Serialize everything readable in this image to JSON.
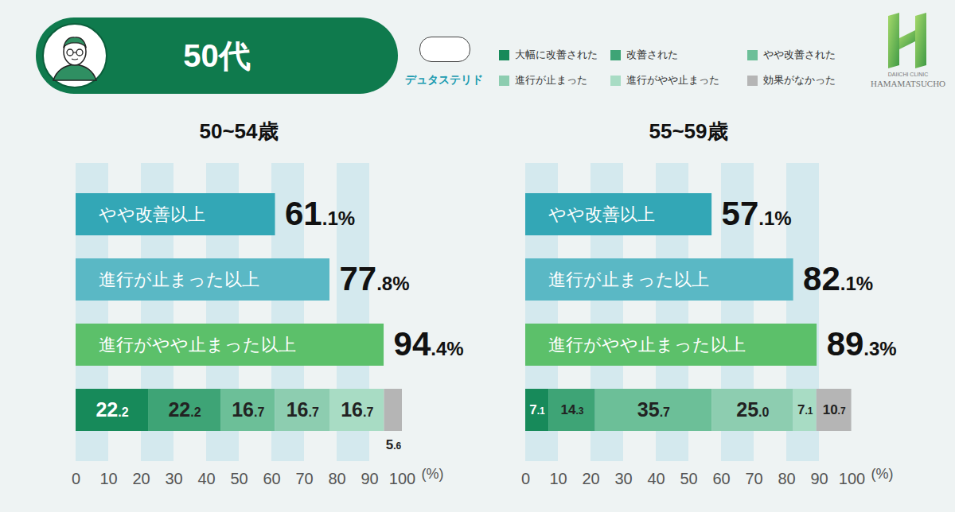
{
  "header": {
    "title": "50代",
    "drug": "デュタステリド",
    "logo": [
      "DAIICHI CLINIC",
      "HAMAMATSUCHO"
    ],
    "legend": "top"
  },
  "chart_data": [
    {
      "type": "bar",
      "title": "50~54歳",
      "orientation": "horizontal",
      "categories": [
        "やや改善以上",
        "進行が止まった以上",
        "進行がやや止まった以上"
      ],
      "values": [
        61.1,
        77.8,
        94.4
      ],
      "value_labels": [
        "61.1%",
        "77.8%",
        "94.4%"
      ],
      "colors": [
        "#33a7b6",
        "#5ab8c5",
        "#5cc06a"
      ],
      "data_labels": true,
      "xlim": [
        0,
        100
      ],
      "xticks": [
        0,
        10,
        20,
        30,
        40,
        50,
        60,
        70,
        80,
        90,
        100
      ],
      "xlabel": "(%)",
      "grid": true,
      "tick_labels": "x",
      "breakdown": {
        "type": "bar",
        "stacked": true,
        "orientation": "horizontal",
        "data_labels": true,
        "series": [
          {
            "name": "大幅に改善された",
            "color": "#178a5a",
            "values": [
              22.2
            ],
            "value_labels": [
              "22.2"
            ]
          },
          {
            "name": "改善された",
            "color": "#3ea476",
            "values": [
              22.2
            ],
            "value_labels": [
              "22.2"
            ]
          },
          {
            "name": "やや改善された",
            "color": "#6cbf98",
            "values": [
              16.7
            ],
            "value_labels": [
              "16.7"
            ]
          },
          {
            "name": "進行が止まった",
            "color": "#8dcdb0",
            "values": [
              16.7
            ],
            "value_labels": [
              "16.7"
            ]
          },
          {
            "name": "進行がやや止まった",
            "color": "#a8dcc4",
            "values": [
              16.7
            ],
            "value_labels": [
              "16.7"
            ]
          },
          {
            "name": "効果がなかった",
            "color": "#b5b5b5",
            "values": [
              5.6
            ],
            "value_labels": [
              "5.6"
            ]
          }
        ]
      }
    },
    {
      "type": "bar",
      "title": "55~59歳",
      "orientation": "horizontal",
      "categories": [
        "やや改善以上",
        "進行が止まった以上",
        "進行がやや止まった以上"
      ],
      "values": [
        57.1,
        82.1,
        89.3
      ],
      "value_labels": [
        "57.1%",
        "82.1%",
        "89.3%"
      ],
      "colors": [
        "#33a7b6",
        "#5ab8c5",
        "#5cc06a"
      ],
      "data_labels": true,
      "xlim": [
        0,
        100
      ],
      "xticks": [
        0,
        10,
        20,
        30,
        40,
        50,
        60,
        70,
        80,
        90,
        100
      ],
      "xlabel": "(%)",
      "grid": true,
      "tick_labels": "x",
      "breakdown": {
        "type": "bar",
        "stacked": true,
        "orientation": "horizontal",
        "data_labels": true,
        "series": [
          {
            "name": "大幅に改善された",
            "color": "#178a5a",
            "values": [
              7.1
            ],
            "value_labels": [
              "7.1"
            ]
          },
          {
            "name": "改善された",
            "color": "#3ea476",
            "values": [
              14.3
            ],
            "value_labels": [
              "14.3"
            ]
          },
          {
            "name": "やや改善された",
            "color": "#6cbf98",
            "values": [
              35.7
            ],
            "value_labels": [
              "35.7"
            ]
          },
          {
            "name": "進行が止まった",
            "color": "#8dcdb0",
            "values": [
              25.0
            ],
            "value_labels": [
              "25.0"
            ]
          },
          {
            "name": "進行がやや止まった",
            "color": "#a8dcc4",
            "values": [
              7.1
            ],
            "value_labels": [
              "7.1"
            ]
          },
          {
            "name": "効果がなかった",
            "color": "#b5b5b5",
            "values": [
              10.7
            ],
            "value_labels": [
              "10.7"
            ]
          }
        ]
      }
    }
  ]
}
